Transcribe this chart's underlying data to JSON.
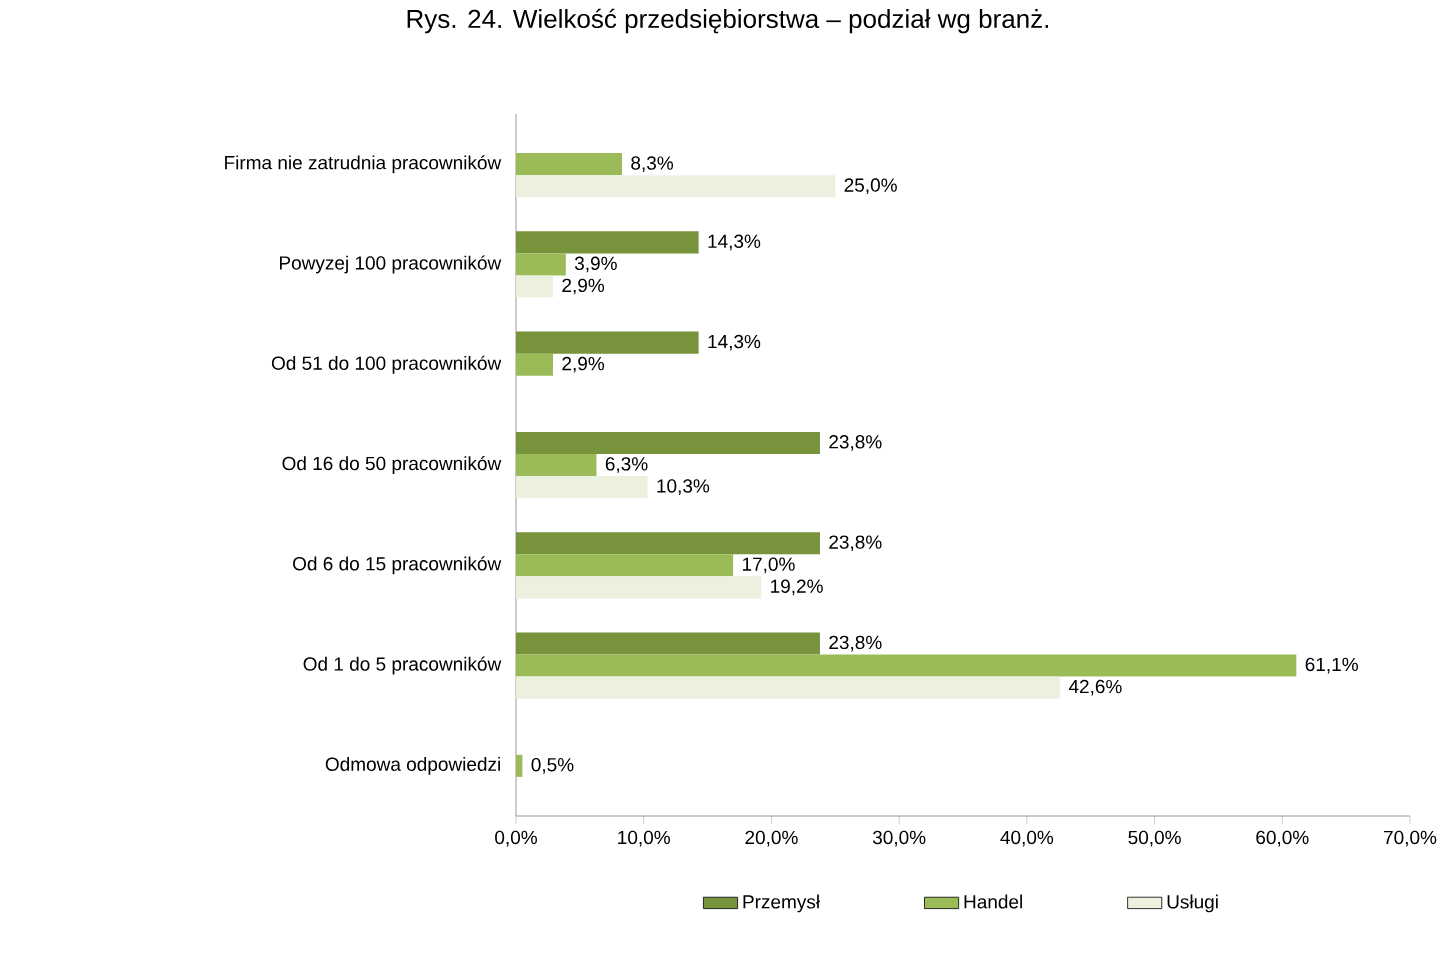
{
  "chart_data": {
    "type": "bar",
    "orientation": "horizontal",
    "title": "Rys. 24. Wielkość przedsiębiorstwa – podział wg branż.",
    "categories": [
      "Firma nie zatrudnia pracowników",
      "Powyzej 100 pracowników",
      "Od 51 do 100 pracowników",
      "Od 16 do 50 pracowników",
      "Od 6 do 15 pracowników",
      "Od 1 do 5 pracowników",
      "Odmowa odpowiedzi"
    ],
    "series": [
      {
        "name": "Przemysł",
        "color": "#77933c",
        "values": [
          null,
          14.3,
          14.3,
          23.8,
          23.8,
          23.8,
          null
        ],
        "value_labels": [
          null,
          "14,3%",
          "14,3%",
          "23,8%",
          "23,8%",
          "23,8%",
          null
        ]
      },
      {
        "name": "Handel",
        "color": "#9bbb59",
        "values": [
          8.3,
          3.9,
          2.9,
          6.3,
          17.0,
          61.1,
          0.5
        ],
        "value_labels": [
          "8,3%",
          "3,9%",
          "2,9%",
          "6,3%",
          "17,0%",
          "61,1%",
          "0,5%"
        ]
      },
      {
        "name": "Usługi",
        "color": "#ebf1de",
        "values": [
          25.0,
          2.9,
          null,
          10.3,
          19.2,
          42.6,
          null
        ],
        "value_labels": [
          "25,0%",
          "2,9%",
          null,
          "10,3%",
          "19,2%",
          "42,6%",
          null
        ]
      }
    ],
    "xlim": [
      0,
      70
    ],
    "xticks": [
      {
        "value": 0,
        "label": "0,0%"
      },
      {
        "value": 10,
        "label": "10,0%"
      },
      {
        "value": 20,
        "label": "20,0%"
      },
      {
        "value": 30,
        "label": "30,0%"
      },
      {
        "value": 40,
        "label": "40,0%"
      },
      {
        "value": 50,
        "label": "50,0%"
      },
      {
        "value": 60,
        "label": "60,0%"
      },
      {
        "value": 70,
        "label": "70,0%"
      }
    ],
    "grid": false,
    "legend": "bottom"
  }
}
